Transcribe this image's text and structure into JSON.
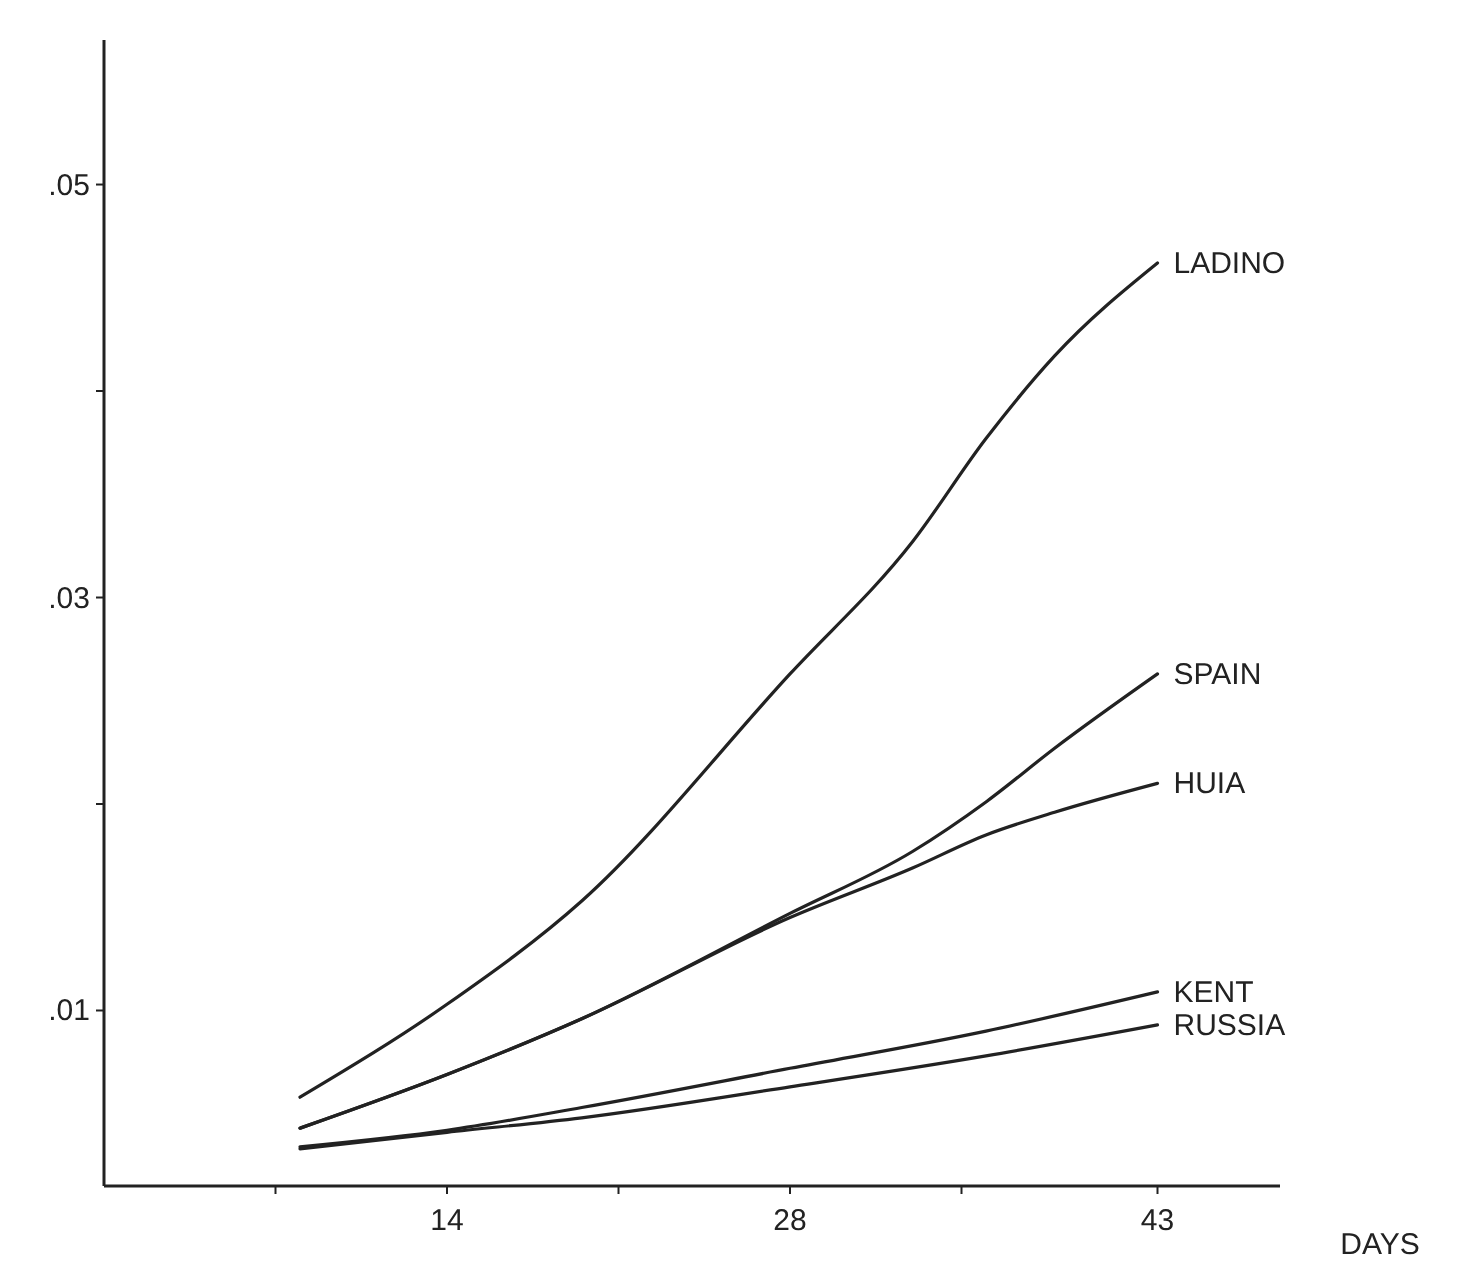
{
  "chart_data": {
    "type": "line",
    "xlabel": "DAYS",
    "xlim": [
      0,
      48
    ],
    "ylim": [
      0.0015,
      0.057
    ],
    "xticks": [
      {
        "value": 7,
        "label": null
      },
      14,
      {
        "value": 21,
        "label": null
      },
      28,
      {
        "value": 35,
        "label": null
      },
      43
    ],
    "yticks": [
      {
        "value": 0.01,
        "label": ".01"
      },
      {
        "value": 0.02,
        "label": null
      },
      {
        "value": 0.03,
        "label": ".03"
      },
      {
        "value": 0.04,
        "label": null
      },
      {
        "value": 0.05,
        "label": ".05"
      }
    ],
    "grid": false,
    "marker": "none",
    "line_style": "solid",
    "series": [
      {
        "name": "LADINO",
        "color": "#222222",
        "x": [
          8,
          14,
          19.5,
          28,
          33,
          36,
          38.8,
          43
        ],
        "values": [
          0.0058,
          0.0103,
          0.0153,
          0.0263,
          0.0327,
          0.0377,
          0.0417,
          0.0462
        ]
      },
      {
        "name": "SPAIN",
        "color": "#222222",
        "x": [
          8,
          14,
          19.5,
          28,
          33,
          36,
          38.8,
          43
        ],
        "values": [
          0.0043,
          0.0069,
          0.0096,
          0.0147,
          0.0177,
          0.0201,
          0.0227,
          0.0263
        ]
      },
      {
        "name": "HUIA",
        "color": "#222222",
        "x": [
          8,
          14,
          19.5,
          28,
          33,
          36,
          38.8,
          43
        ],
        "values": [
          0.0043,
          0.0069,
          0.0096,
          0.0145,
          0.0169,
          0.0185,
          0.0196,
          0.021
        ]
      },
      {
        "name": "KENT",
        "color": "#222222",
        "x": [
          8,
          14,
          19.5,
          28,
          36,
          43
        ],
        "values": [
          0.0034,
          0.0042,
          0.0053,
          0.0072,
          0.009,
          0.0109
        ]
      },
      {
        "name": "RUSSIA",
        "color": "#222222",
        "x": [
          8,
          14,
          19.5,
          28,
          36,
          43
        ],
        "values": [
          0.0033,
          0.0041,
          0.0048,
          0.0063,
          0.0078,
          0.0093
        ]
      }
    ]
  }
}
